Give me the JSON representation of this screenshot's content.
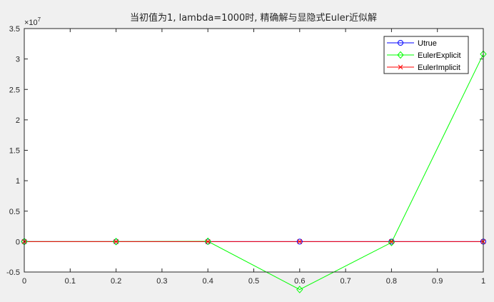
{
  "chart_data": {
    "type": "line",
    "title": "当初值为1, lambda=1000时, 精确解与显隐式Euler近似解",
    "xlabel": "",
    "ylabel": "",
    "x": [
      0,
      0.2,
      0.4,
      0.6,
      0.8,
      1.0
    ],
    "xlim": [
      0,
      1
    ],
    "ylim": [
      -5000000,
      35000000
    ],
    "y_exponent_label": "× 10^7",
    "y_exponent_base": "×10",
    "y_exponent_power": "7",
    "xticks": [
      0,
      0.1,
      0.2,
      0.3,
      0.4,
      0.5,
      0.6,
      0.7,
      0.8,
      0.9,
      1
    ],
    "xtick_labels": [
      "0",
      "0.1",
      "0.2",
      "0.3",
      "0.4",
      "0.5",
      "0.6",
      "0.7",
      "0.8",
      "0.9",
      "1"
    ],
    "yticks": [
      -5000000,
      0,
      5000000,
      10000000,
      15000000,
      20000000,
      25000000,
      30000000,
      35000000
    ],
    "ytick_labels": [
      "-0.5",
      "0",
      "0.5",
      "1",
      "1.5",
      "2",
      "2.5",
      "3",
      "3.5"
    ],
    "grid": false,
    "legend_position": "top-right",
    "series": [
      {
        "name": "Utrue",
        "color": "#0000ff",
        "marker": "circle",
        "values": [
          1,
          0,
          0,
          0,
          0,
          0
        ]
      },
      {
        "name": "EulerExplicit",
        "color": "#00ff00",
        "marker": "diamond",
        "values": [
          1,
          -199,
          39601,
          -7880599,
          -150000,
          30800000
        ]
      },
      {
        "name": "EulerImplicit",
        "color": "#ff0000",
        "marker": "x",
        "values": [
          1,
          0.005,
          0,
          0,
          0,
          0
        ]
      }
    ]
  }
}
